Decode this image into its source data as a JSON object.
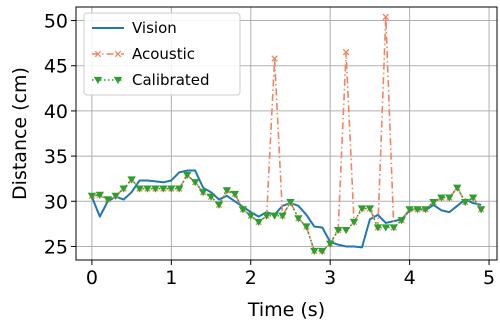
{
  "chart_data": {
    "type": "line",
    "title": "",
    "xlabel": "Time (s)",
    "ylabel": "Distance (cm)",
    "xlim": [
      -0.2,
      5.1
    ],
    "ylim": [
      23.5,
      51.5
    ],
    "xticks": [
      0,
      1,
      2,
      3,
      4,
      5
    ],
    "yticks": [
      25,
      30,
      35,
      40,
      45,
      50
    ],
    "grid": true,
    "legend_position": "top-left",
    "series": [
      {
        "name": "Vision",
        "color": "#1f77b4",
        "style": "solid",
        "marker": "none",
        "x": [
          0.0,
          0.1,
          0.2,
          0.3,
          0.4,
          0.5,
          0.6,
          0.7,
          0.8,
          0.9,
          1.0,
          1.1,
          1.2,
          1.3,
          1.4,
          1.5,
          1.6,
          1.7,
          1.8,
          1.9,
          2.0,
          2.1,
          2.2,
          2.3,
          2.4,
          2.5,
          2.6,
          2.7,
          2.8,
          2.9,
          3.0,
          3.1,
          3.2,
          3.3,
          3.4,
          3.5,
          3.6,
          3.7,
          3.8,
          3.9,
          4.0,
          4.1,
          4.2,
          4.3,
          4.4,
          4.5,
          4.6,
          4.7,
          4.8,
          4.9
        ],
        "y": [
          30.5,
          28.3,
          30.0,
          30.5,
          30.2,
          31.0,
          32.3,
          32.3,
          32.2,
          32.1,
          32.3,
          33.2,
          33.4,
          33.4,
          31.5,
          31.0,
          30.2,
          30.6,
          30.0,
          29.4,
          28.8,
          28.3,
          28.8,
          28.5,
          29.5,
          29.8,
          29.5,
          28.5,
          27.2,
          27.1,
          25.5,
          25.2,
          25.0,
          25.0,
          24.9,
          28.0,
          28.5,
          27.6,
          27.8,
          28.0,
          29.0,
          29.2,
          29.0,
          29.6,
          29.0,
          28.8,
          29.5,
          30.2,
          29.8,
          29.6
        ]
      },
      {
        "name": "Acoustic",
        "color": "#f4845f",
        "style": "dashdot",
        "marker": "x",
        "x": [
          0.0,
          0.1,
          0.2,
          0.3,
          0.4,
          0.5,
          0.6,
          0.7,
          0.8,
          0.9,
          1.0,
          1.1,
          1.2,
          1.3,
          1.4,
          1.5,
          1.6,
          1.7,
          1.8,
          1.9,
          2.0,
          2.1,
          2.2,
          2.3,
          2.4,
          2.5,
          2.6,
          2.7,
          2.8,
          2.9,
          3.0,
          3.1,
          3.2,
          3.3,
          3.4,
          3.5,
          3.6,
          3.7,
          3.8,
          3.9,
          4.0,
          4.1,
          4.2,
          4.3,
          4.4,
          4.5,
          4.6,
          4.7,
          4.8,
          4.9
        ],
        "y": [
          30.6,
          30.7,
          30.2,
          30.6,
          31.4,
          32.4,
          31.4,
          31.4,
          31.4,
          31.4,
          31.4,
          31.4,
          32.9,
          32.1,
          31.0,
          30.5,
          29.6,
          31.2,
          30.8,
          29.1,
          28.4,
          27.7,
          28.4,
          45.8,
          28.4,
          29.9,
          28.1,
          27.2,
          24.5,
          24.5,
          25.3,
          26.8,
          46.5,
          27.7,
          29.2,
          29.2,
          27.1,
          50.4,
          27.1,
          27.9,
          29.1,
          29.1,
          29.1,
          29.9,
          30.4,
          30.4,
          31.5,
          29.9,
          30.4,
          29.1
        ]
      },
      {
        "name": "Calibrated",
        "color": "#2ca02c",
        "style": "dotted",
        "marker": "triangle_down",
        "x": [
          0.0,
          0.1,
          0.2,
          0.3,
          0.4,
          0.5,
          0.6,
          0.7,
          0.8,
          0.9,
          1.0,
          1.1,
          1.2,
          1.3,
          1.4,
          1.5,
          1.6,
          1.7,
          1.8,
          1.9,
          2.0,
          2.1,
          2.2,
          2.3,
          2.4,
          2.5,
          2.6,
          2.7,
          2.8,
          2.9,
          3.0,
          3.1,
          3.2,
          3.3,
          3.4,
          3.5,
          3.6,
          3.7,
          3.8,
          3.9,
          4.0,
          4.1,
          4.2,
          4.3,
          4.4,
          4.5,
          4.6,
          4.7,
          4.8,
          4.9
        ],
        "y": [
          30.6,
          30.7,
          30.2,
          30.6,
          31.4,
          32.4,
          31.4,
          31.4,
          31.4,
          31.4,
          31.4,
          31.4,
          32.9,
          32.1,
          31.0,
          30.5,
          29.6,
          31.2,
          30.8,
          29.1,
          28.4,
          27.7,
          28.4,
          28.4,
          28.4,
          29.9,
          28.1,
          27.2,
          24.5,
          24.5,
          25.3,
          26.8,
          26.8,
          27.7,
          29.2,
          29.2,
          27.1,
          27.1,
          27.1,
          27.9,
          29.1,
          29.1,
          29.1,
          29.9,
          30.4,
          30.4,
          31.5,
          29.9,
          30.4,
          29.1
        ]
      }
    ]
  }
}
